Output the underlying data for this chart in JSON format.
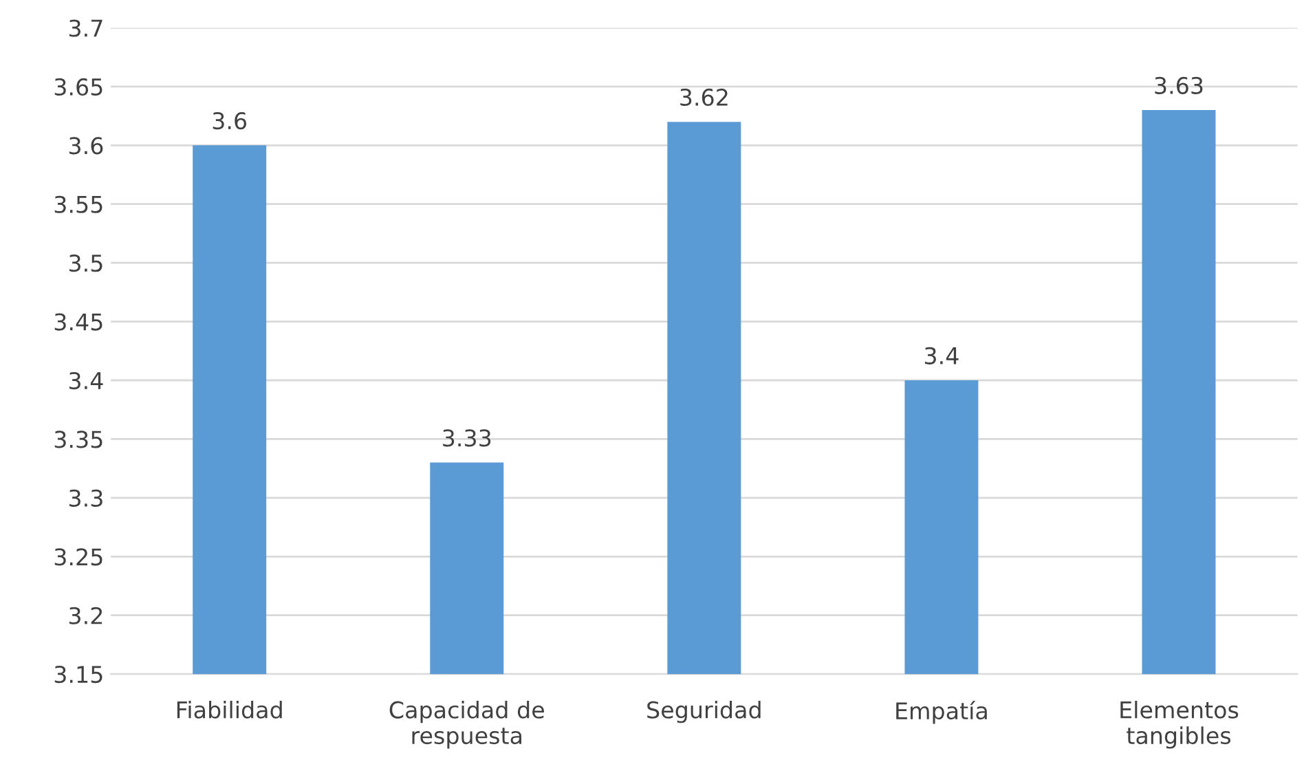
{
  "chart_data": {
    "type": "bar",
    "categories": [
      "Fiabilidad",
      "Capacidad de respuesta",
      "Seguridad",
      "Empatía",
      "Elementos tangibles"
    ],
    "values": [
      3.6,
      3.33,
      3.62,
      3.4,
      3.63
    ],
    "color": "#5b9bd5",
    "ylim": [
      3.15,
      3.7
    ],
    "yticks": [
      3.15,
      3.2,
      3.25,
      3.3,
      3.35,
      3.4,
      3.45,
      3.5,
      3.55,
      3.6,
      3.65,
      3.7
    ],
    "grid": "y",
    "data_labels": true,
    "legend": false
  }
}
